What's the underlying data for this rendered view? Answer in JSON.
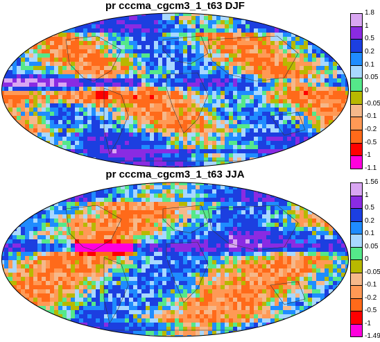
{
  "maps": [
    {
      "title": "pr cccma_cgcm3_1_t63 DJF",
      "colorbar": {
        "labels": [
          "1.8",
          "1",
          "0.5",
          "0.2",
          "0.1",
          "0.05",
          "0",
          "-0.05",
          "-0.1",
          "-0.2",
          "-0.5",
          "-1",
          "-1.1"
        ],
        "colors": [
          "#d9a6f2",
          "#8a2be2",
          "#1c3fe0",
          "#1f8cff",
          "#a8d8ff",
          "#55e88a",
          "#b8b800",
          "#f5b88a",
          "#ff9955",
          "#ff6a1a",
          "#ff0000",
          "#ff00dd"
        ]
      }
    },
    {
      "title": "pr cccma_cgcm3_1_t63 JJA",
      "colorbar": {
        "labels": [
          "1.56",
          "1",
          "0.5",
          "0.2",
          "0.1",
          "0.05",
          "0",
          "-0.05",
          "-0.1",
          "-0.2",
          "-0.5",
          "-1",
          "-1.49"
        ],
        "colors": [
          "#d9a6f2",
          "#8a2be2",
          "#1c3fe0",
          "#1f8cff",
          "#a8d8ff",
          "#55e88a",
          "#b8b800",
          "#f5b88a",
          "#ff9955",
          "#ff6a1a",
          "#ff0000",
          "#ff00dd"
        ]
      }
    }
  ]
}
